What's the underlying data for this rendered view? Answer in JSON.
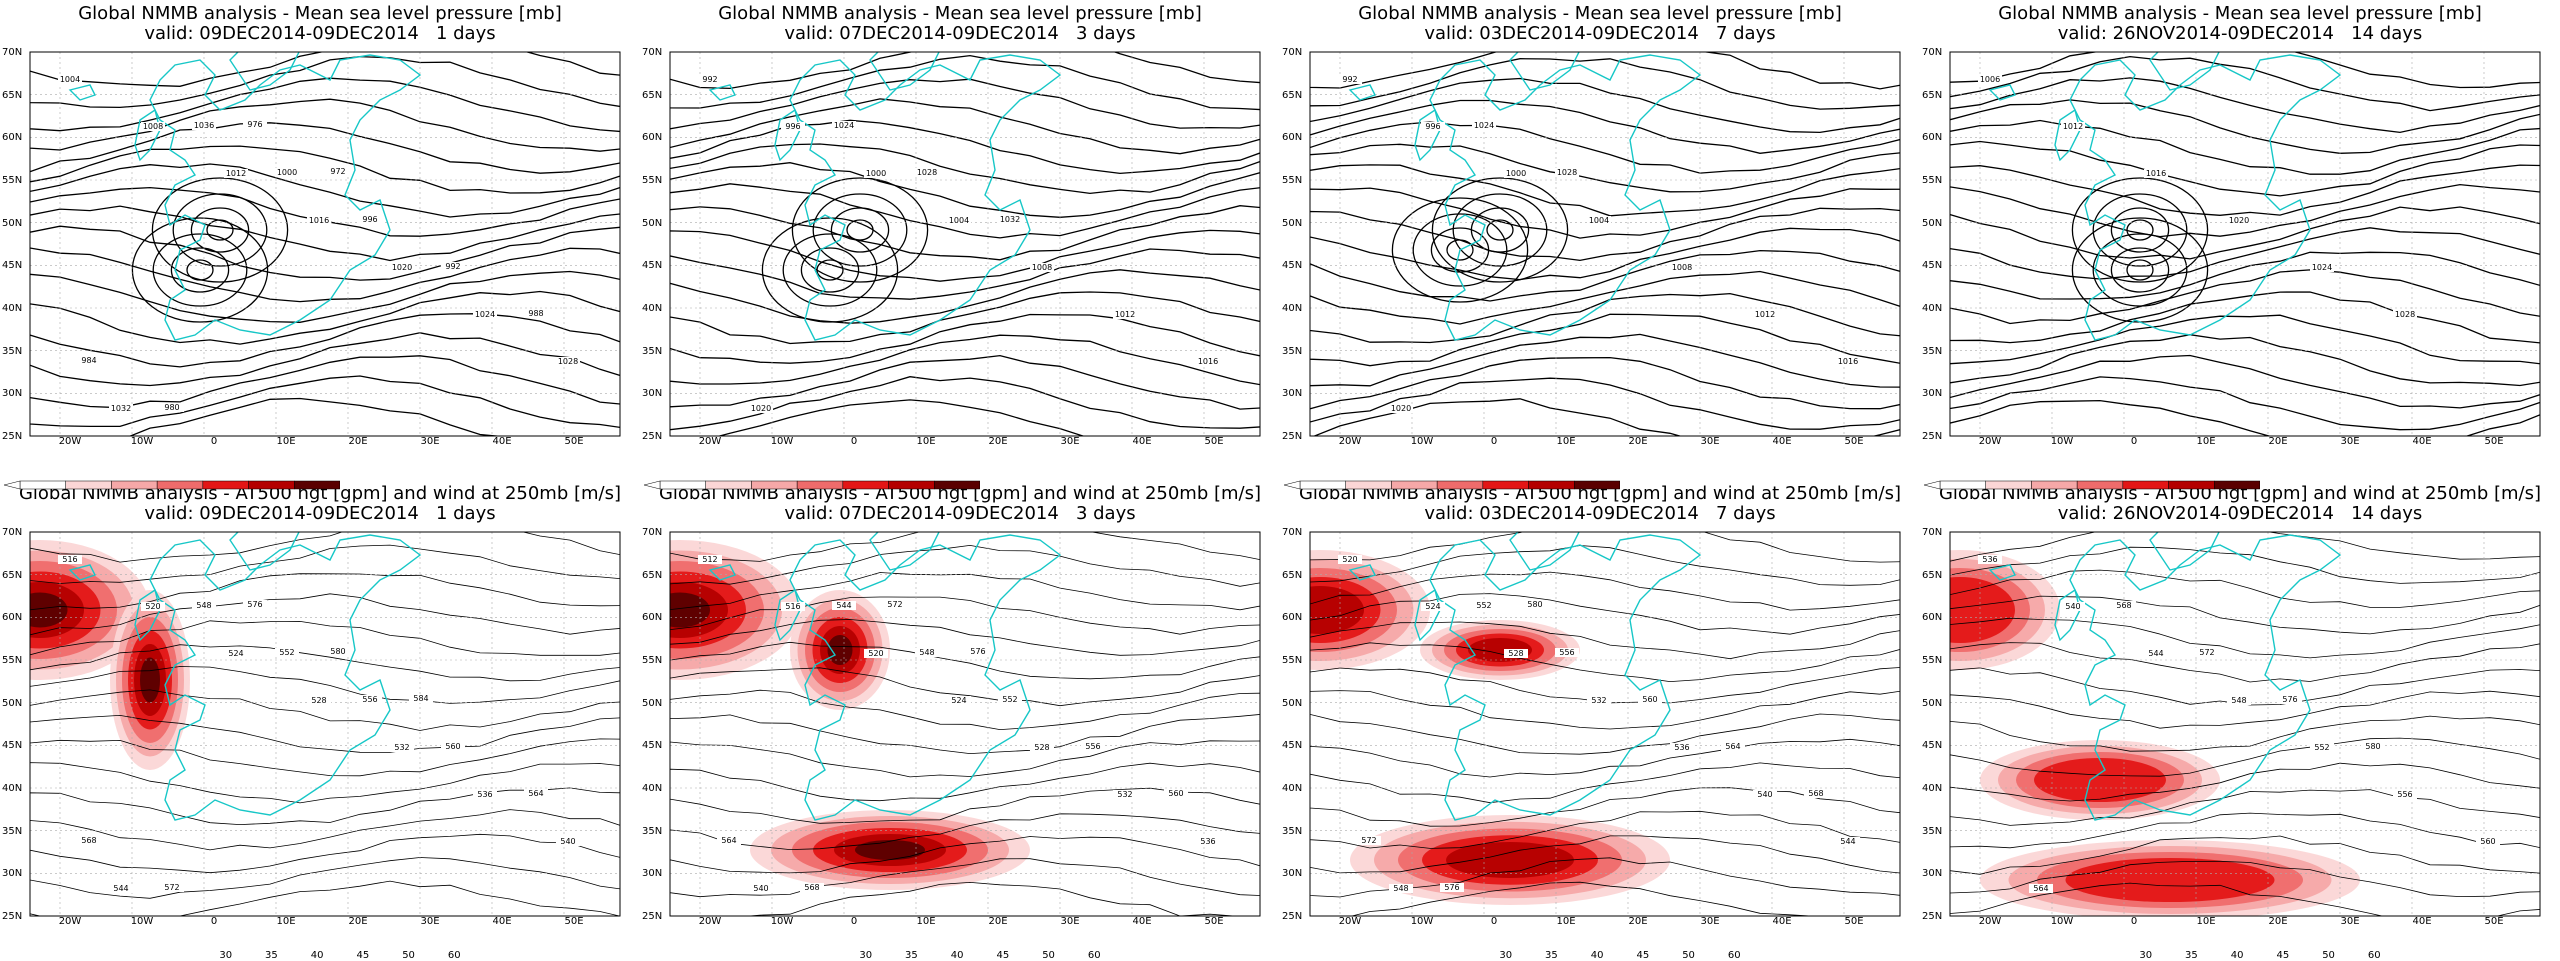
{
  "panels": [
    {
      "row": "mslp",
      "t1": "Global NMMB analysis - Mean sea level pressure [mb]",
      "t2": "valid: 09DEC2014-09DEC2014   1 days",
      "labels": [
        "1004",
        "1008",
        "1012",
        "1016",
        "1020",
        "1024",
        "1028",
        "1032",
        "1036",
        "1000",
        "996",
        "992",
        "988",
        "984",
        "980",
        "976",
        "972"
      ],
      "centers": [
        [
          220,
          230
        ],
        [
          180,
          270
        ]
      ]
    },
    {
      "row": "mslp",
      "t1": "Global NMMB analysis - Mean sea level pressure [mb]",
      "t2": "valid: 07DEC2014-09DEC2014   3 days",
      "labels": [
        "992",
        "996",
        "1000",
        "1004",
        "1008",
        "1012",
        "1016",
        "1020",
        "1024",
        "1028",
        "1032"
      ],
      "centers": [
        [
          220,
          230
        ],
        [
          170,
          270
        ]
      ]
    },
    {
      "row": "mslp",
      "t1": "Global NMMB analysis - Mean sea level pressure [mb]",
      "t2": "valid: 03DEC2014-09DEC2014   7 days",
      "labels": [
        "992",
        "996",
        "1000",
        "1004",
        "1008",
        "1012",
        "1016",
        "1020",
        "1024",
        "1028"
      ],
      "centers": [
        [
          220,
          230
        ],
        [
          160,
          250
        ]
      ]
    },
    {
      "row": "mslp",
      "t1": "Global NMMB analysis - Mean sea level pressure [mb]",
      "t2": "valid: 26NOV2014-09DEC2014   14 days",
      "labels": [
        "1006",
        "1012",
        "1016",
        "1020",
        "1024",
        "1028"
      ],
      "centers": [
        [
          220,
          230
        ],
        [
          200,
          270
        ]
      ]
    },
    {
      "row": "z500",
      "t1": "Global NMMB analysis - AT500 hgt [gpm] and wind at 250mb [m/s]",
      "t2": "valid: 09DEC2014-09DEC2014   1 days",
      "labels": [
        "516",
        "520",
        "524",
        "528",
        "532",
        "536",
        "540",
        "544",
        "548",
        "552",
        "556",
        "560",
        "564",
        "568",
        "572",
        "576",
        "580",
        "584"
      ]
    },
    {
      "row": "z500",
      "t1": "Global NMMB analysis - AT500 hgt [gpm] and wind at 250mb [m/s]",
      "t2": "valid: 07DEC2014-09DEC2014   3 days",
      "labels": [
        "512",
        "516",
        "520",
        "524",
        "528",
        "532",
        "536",
        "540",
        "544",
        "548",
        "552",
        "556",
        "560",
        "564",
        "568",
        "572",
        "576"
      ]
    },
    {
      "row": "z500",
      "t1": "Global NMMB analysis - AT500 hgt [gpm] and wind at 250mb [m/s]",
      "t2": "valid: 03DEC2014-09DEC2014   7 days",
      "labels": [
        "520",
        "524",
        "528",
        "532",
        "536",
        "540",
        "544",
        "548",
        "552",
        "556",
        "560",
        "564",
        "568",
        "572",
        "576",
        "580"
      ]
    },
    {
      "row": "z500",
      "t1": "Global NMMB analysis - AT500 hgt [gpm] and wind at 250mb [m/s]",
      "t2": "valid: 26NOV2014-09DEC2014   14 days",
      "labels": [
        "536",
        "540",
        "544",
        "548",
        "552",
        "556",
        "560",
        "564",
        "568",
        "572",
        "576",
        "580"
      ]
    }
  ],
  "lat_ticks": [
    "70N",
    "65N",
    "60N",
    "55N",
    "50N",
    "45N",
    "40N",
    "35N",
    "30N",
    "25N"
  ],
  "lon_ticks": [
    "20W",
    "10W",
    "0",
    "10E",
    "20E",
    "30E",
    "40E",
    "50E"
  ],
  "colorbar": {
    "ticks": [
      "30",
      "35",
      "40",
      "45",
      "50",
      "60"
    ],
    "colors": [
      "#ffffff",
      "#fbd6d6",
      "#f6a8a8",
      "#ef6b6b",
      "#e31616",
      "#b40000",
      "#5a0000"
    ]
  },
  "colors": {
    "coast": "#17c7c7",
    "contour": "#000000",
    "grid": "#aaaaaa"
  }
}
